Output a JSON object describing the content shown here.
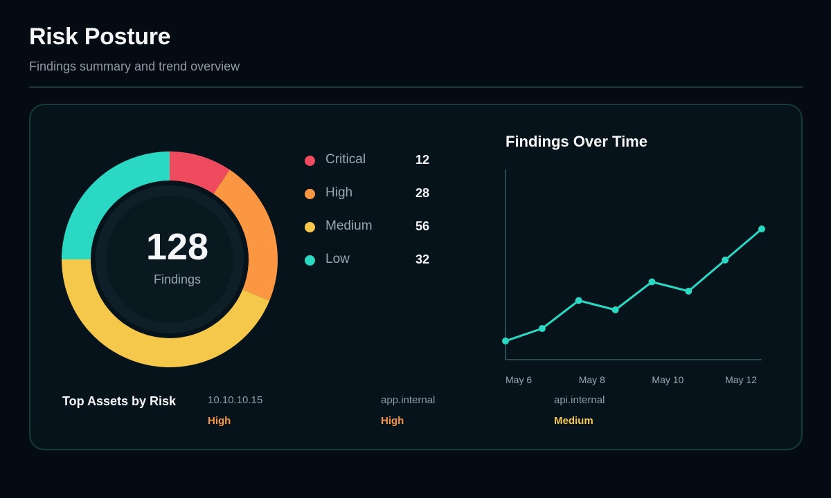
{
  "header": {
    "title": "Risk Posture",
    "subtitle": "Findings summary and trend overview"
  },
  "summary": {
    "total": "128",
    "total_label": "Findings"
  },
  "colors": {
    "critical": "#ef4b5f",
    "high": "#fb9642",
    "medium": "#f5c84b",
    "low": "#2bd8c4",
    "axis": "#2b4a4f"
  },
  "legend": [
    {
      "label": "Critical",
      "value": "12",
      "color": "#ef4b5f"
    },
    {
      "label": "High",
      "value": "28",
      "color": "#fb9642"
    },
    {
      "label": "Medium",
      "value": "56",
      "color": "#f5c84b"
    },
    {
      "label": "Low",
      "value": "32",
      "color": "#2bd8c4"
    }
  ],
  "chart_data": [
    {
      "type": "pie",
      "categories": [
        "Critical",
        "High",
        "Medium",
        "Low"
      ],
      "values": [
        12,
        28,
        56,
        32
      ],
      "title": "",
      "center_text": "128 Findings"
    },
    {
      "type": "line",
      "title": "Findings Over Time",
      "x": [
        "May 6",
        "May 7",
        "May 8",
        "May 9",
        "May 10",
        "May 11",
        "May 12",
        "May 13"
      ],
      "tick_labels": [
        "May 6",
        "May 8",
        "May 10",
        "May 12"
      ],
      "series": [
        {
          "values": [
            6,
            10,
            19,
            16,
            25,
            22,
            32,
            42
          ]
        }
      ],
      "ylim": [
        0,
        60
      ],
      "grid": false,
      "xlabel": "",
      "ylabel": ""
    }
  ],
  "top_assets": {
    "title": "Top Assets by Risk",
    "items": [
      {
        "name": "10.10.10.15",
        "risk": "High",
        "color": "#fb9642"
      },
      {
        "name": "app.internal",
        "risk": "High",
        "color": "#fb9642"
      },
      {
        "name": "api.internal",
        "risk": "Medium",
        "color": "#f5c84b"
      }
    ]
  }
}
